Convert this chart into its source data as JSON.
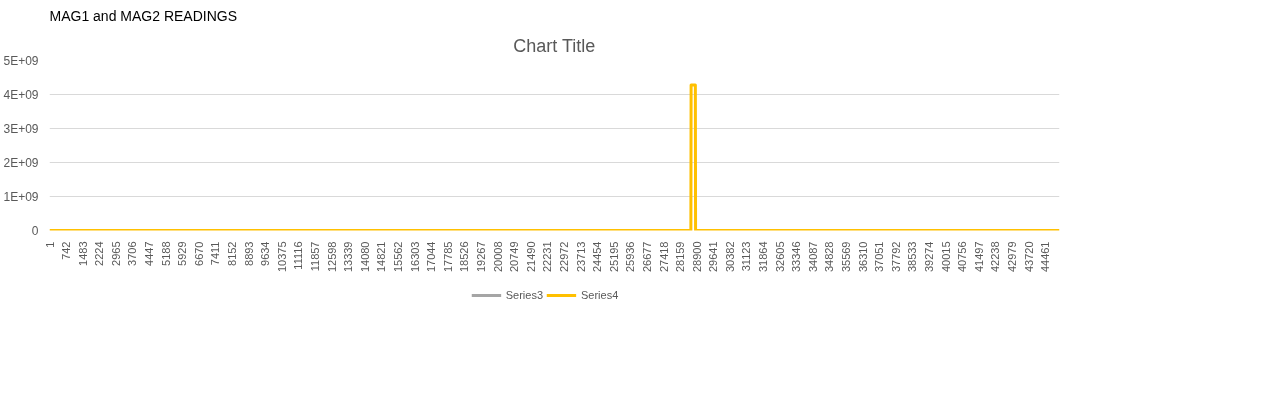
{
  "chart_data": {
    "type": "line",
    "title": "MAG1 and MAG2 READINGS",
    "subtitle": "Chart Title",
    "xlim": [
      1,
      45100
    ],
    "xticks": [
      1,
      742,
      1483,
      2224,
      2965,
      3706,
      4447,
      5188,
      5929,
      6670,
      7411,
      8152,
      8893,
      9634,
      10375,
      11116,
      11857,
      12598,
      13339,
      14080,
      14821,
      15562,
      16303,
      17044,
      17785,
      18526,
      19267,
      20008,
      20749,
      21490,
      22231,
      22972,
      23713,
      24454,
      25195,
      25936,
      26677,
      27418,
      28159,
      28900,
      29641,
      30382,
      31123,
      31864,
      32605,
      33346,
      34087,
      34828,
      35569,
      36310,
      37051,
      37792,
      38533,
      39274,
      40015,
      40756,
      41497,
      42238,
      42979,
      43720,
      44461
    ],
    "ylim": [
      0,
      5000000000
    ],
    "yticks": [
      {
        "value": 0,
        "label": "0"
      },
      {
        "value": 1000000000,
        "label": "1E+09"
      },
      {
        "value": 2000000000,
        "label": "2E+09"
      },
      {
        "value": 3000000000,
        "label": "3E+09"
      },
      {
        "value": 4000000000,
        "label": "4E+09"
      },
      {
        "value": 5000000000,
        "label": "5E+09"
      }
    ],
    "grid": "y",
    "legend": "bottom",
    "series": [
      {
        "name": "Series3",
        "color": "#a5a5a5"
      },
      {
        "name": "Series4",
        "color": "#ffc000",
        "x": [
          1,
          28640,
          28650,
          28840,
          28850,
          45100
        ],
        "values": [
          0,
          0,
          4280000000,
          4280000000,
          0,
          0
        ]
      }
    ]
  }
}
